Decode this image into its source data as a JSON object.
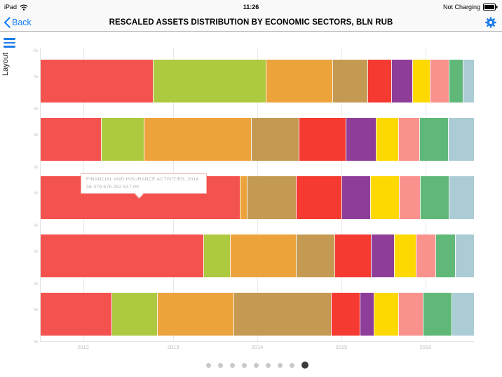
{
  "status_bar": {
    "device": "iPad",
    "time": "11:26",
    "battery": "Not Charging"
  },
  "nav_bar": {
    "back": "Back",
    "title": "RESCALED ASSETS DISTRIBUTION BY ECONOMIC SECTORS, BLN RUB"
  },
  "sidebar": {
    "panel_label": "Layout"
  },
  "chart_data": {
    "type": "bar",
    "variant": "horizontal_100pct_stacked",
    "title": "RESCALED ASSETS DISTRIBUTION BY ECONOMIC SECTORS, BLN RUB",
    "categories": [
      "2012",
      "2013",
      "2014",
      "2015",
      "2016"
    ],
    "x_tick_labels": [
      "2012",
      "2013",
      "2014",
      "2015",
      "2016"
    ],
    "x_tick_positions_pct": [
      9.8,
      30.6,
      50.0,
      69.4,
      88.8
    ],
    "y_tick_labels": [
      "-%",
      "%",
      "%",
      "%",
      "%",
      "%",
      "%",
      "%",
      "%",
      "%",
      "%"
    ],
    "segment_colors": [
      "#f4524e",
      "#adc93f",
      "#eda33c",
      "#c49a52",
      "#f43a31",
      "#8e3e99",
      "#fed801",
      "#f9918d",
      "#5fb878",
      "#abccd4"
    ],
    "rows": [
      {
        "category": "2012",
        "values_pct": [
          26.3,
          26.3,
          15.3,
          8.1,
          5.5,
          4.7,
          4.0,
          4.2,
          3.2,
          2.4
        ]
      },
      {
        "category": "2013",
        "values_pct": [
          14.2,
          9.7,
          25.0,
          11.0,
          10.8,
          6.9,
          5.2,
          4.8,
          6.5,
          5.9
        ]
      },
      {
        "category": "2014",
        "values_pct": [
          46.5,
          0,
          1.6,
          11.3,
          10.5,
          6.5,
          6.5,
          4.8,
          6.5,
          5.8
        ]
      },
      {
        "category": "2015",
        "values_pct": [
          38.1,
          6.0,
          15.3,
          8.9,
          8.4,
          5.3,
          4.8,
          4.5,
          4.4,
          4.3
        ]
      },
      {
        "category": "2016",
        "values_pct": [
          16.6,
          10.5,
          17.8,
          22.6,
          6.5,
          3.2,
          5.6,
          5.6,
          6.5,
          5.1
        ]
      }
    ],
    "tooltip": {
      "title": "FINANCIAL AND INSURANCE ACTIVITIES, 2014",
      "value": "36 379 575 252 517,00"
    }
  },
  "pagination": {
    "total": 9,
    "active_index": 8
  }
}
